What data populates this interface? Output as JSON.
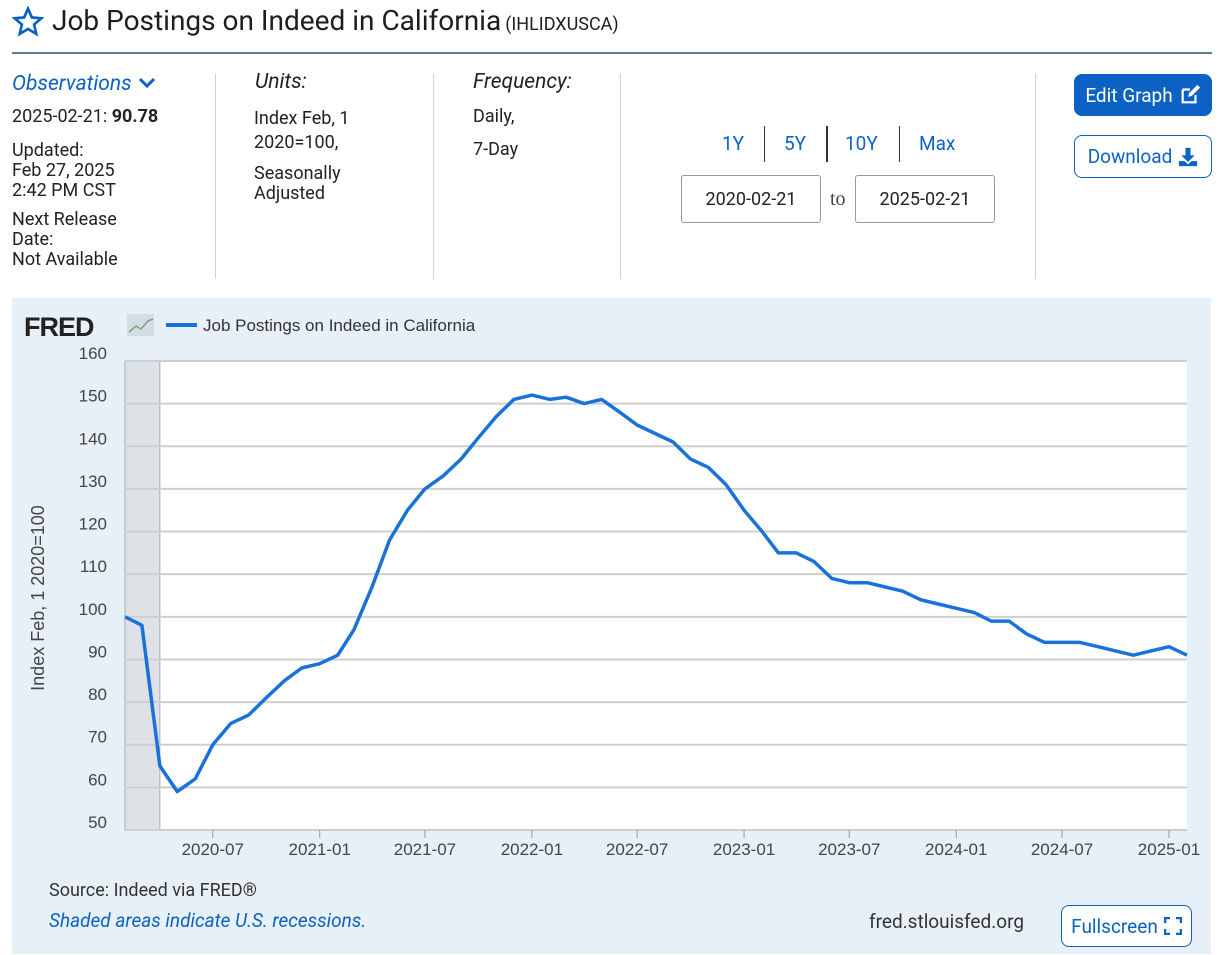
{
  "header": {
    "title": "Job Postings on Indeed in California",
    "series_id": "(IHLIDXUSCA)"
  },
  "info": {
    "observations": {
      "heading": "Observations",
      "date": "2025-02-21:",
      "value": 90.78
    },
    "updated": {
      "label": "Updated:",
      "lines": [
        "Feb 27, 2025",
        "2:42 PM CST"
      ]
    },
    "next_release": {
      "label": "Next Release Date:",
      "value": "Not Available"
    },
    "units": {
      "heading": "Units:",
      "lines": [
        "Index Feb, 1 2020=100,",
        "Seasonally Adjusted"
      ]
    },
    "frequency": {
      "heading": "Frequency:",
      "lines": [
        "Daily,",
        "7-Day"
      ]
    }
  },
  "range": {
    "buttons": [
      "1Y",
      "5Y",
      "10Y",
      "Max"
    ],
    "start": "2020-02-21",
    "separator": "to",
    "end": "2025-02-21"
  },
  "actions": {
    "edit": "Edit Graph",
    "download": "Download",
    "fullscreen": "Fullscreen"
  },
  "footer": {
    "source": "Source: Indeed via FRED®",
    "note": "Shaded areas indicate U.S. recessions.",
    "site": "fred.stlouisfed.org"
  },
  "chart_data": {
    "type": "line",
    "logo": "FRED",
    "ylabel": "Index Feb, 1 2020=100",
    "x": [
      "2020-02",
      "2020-03",
      "2020-04",
      "2020-05",
      "2020-06",
      "2020-07",
      "2020-08",
      "2020-09",
      "2020-10",
      "2020-11",
      "2020-12",
      "2021-01",
      "2021-02",
      "2021-03",
      "2021-04",
      "2021-05",
      "2021-06",
      "2021-07",
      "2021-08",
      "2021-09",
      "2021-10",
      "2021-11",
      "2021-12",
      "2022-01",
      "2022-02",
      "2022-03",
      "2022-04",
      "2022-05",
      "2022-06",
      "2022-07",
      "2022-08",
      "2022-09",
      "2022-10",
      "2022-11",
      "2022-12",
      "2023-01",
      "2023-02",
      "2023-03",
      "2023-04",
      "2023-05",
      "2023-06",
      "2023-07",
      "2023-08",
      "2023-09",
      "2023-10",
      "2023-11",
      "2023-12",
      "2024-01",
      "2024-02",
      "2024-03",
      "2024-04",
      "2024-05",
      "2024-06",
      "2024-07",
      "2024-08",
      "2024-09",
      "2024-10",
      "2024-11",
      "2024-12",
      "2025-01",
      "2025-02"
    ],
    "series": [
      {
        "name": "Job Postings on Indeed in California",
        "color": "#1a72d9",
        "values": [
          100,
          98,
          65,
          59,
          62,
          70,
          75,
          77,
          81,
          85,
          88,
          89,
          91,
          97,
          107,
          118,
          125,
          130,
          133,
          137,
          142,
          147,
          151,
          152,
          151,
          151.5,
          150,
          151,
          148,
          145,
          143,
          141,
          137,
          135,
          131,
          125,
          120,
          115,
          115,
          113,
          109,
          108,
          108,
          107,
          106,
          104,
          103,
          102,
          101,
          99,
          99,
          96,
          94,
          94,
          94,
          93,
          92,
          91,
          92,
          93,
          91
        ]
      }
    ],
    "xlim": [
      "2020-02",
      "2025-02"
    ],
    "xticks": [
      "2020-07",
      "2021-01",
      "2021-07",
      "2022-01",
      "2022-07",
      "2023-01",
      "2023-07",
      "2024-01",
      "2024-07",
      "2025-01"
    ],
    "ylim": [
      50,
      160
    ],
    "yticks": [
      50,
      60,
      70,
      80,
      90,
      100,
      110,
      120,
      130,
      140,
      150,
      160
    ],
    "grid": true,
    "recessions": [
      [
        "2020-02",
        "2020-04"
      ]
    ],
    "recession_color": "#dde2e6"
  }
}
